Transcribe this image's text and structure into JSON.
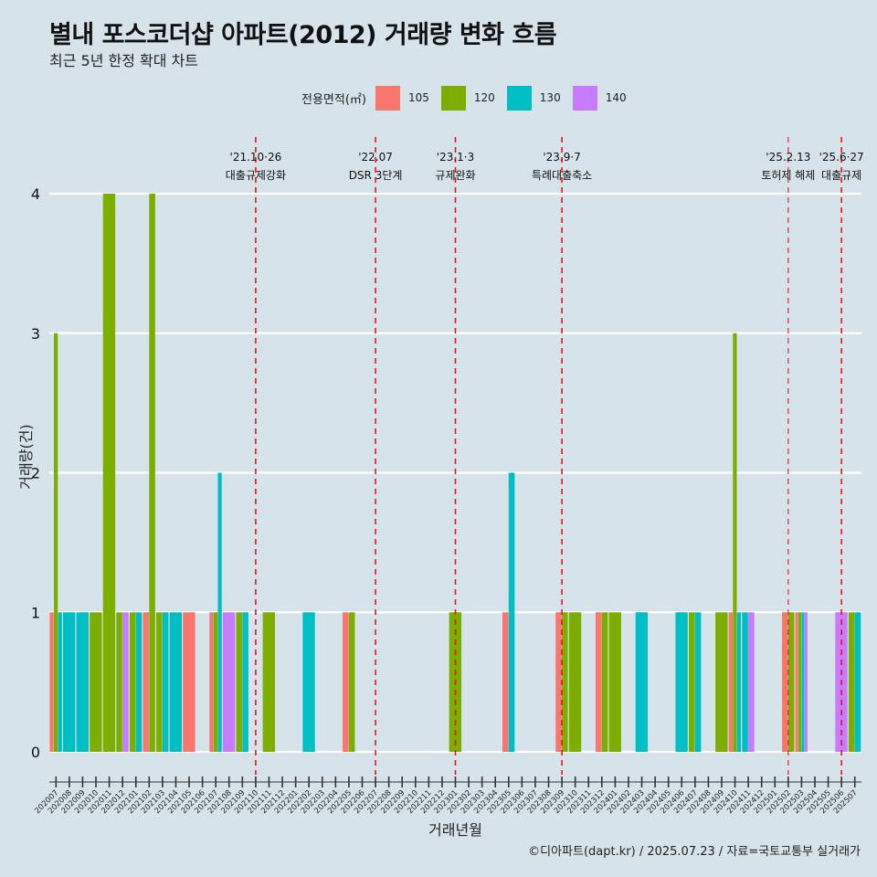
{
  "title": "별내 포스코더샵 아파트(2012) 거래량 변화 흐름",
  "subtitle": "최근 5년 한정 확대 차트",
  "legend_title": "전용면적(㎡)",
  "caption": "©디아파트(dapt.kr) / 2025.07.23 / 자료=국토교통부 실거래가",
  "chart_data": {
    "type": "bar",
    "xlabel": "거래년월",
    "ylabel": "거래량(건)",
    "ylim": [
      0,
      4
    ],
    "yticks": [
      0,
      1,
      2,
      3,
      4
    ],
    "grid": true,
    "legend_position": "top",
    "categories": [
      "202007",
      "202008",
      "202009",
      "202010",
      "202011",
      "202012",
      "202101",
      "202102",
      "202103",
      "202104",
      "202105",
      "202106",
      "202107",
      "202108",
      "202109",
      "202110",
      "202111",
      "202112",
      "202201",
      "202202",
      "202203",
      "202204",
      "202205",
      "202206",
      "202207",
      "202208",
      "202209",
      "202210",
      "202211",
      "202212",
      "202301",
      "202302",
      "202303",
      "202304",
      "202305",
      "202306",
      "202307",
      "202308",
      "202309",
      "202310",
      "202311",
      "202312",
      "202401",
      "202402",
      "202403",
      "202404",
      "202405",
      "202406",
      "202407",
      "202408",
      "202409",
      "202410",
      "202411",
      "202412",
      "202501",
      "202502",
      "202503",
      "202504",
      "202505",
      "202506",
      "202507"
    ],
    "series": [
      {
        "name": "105",
        "color": "#f8766d",
        "values": [
          1,
          0,
          0,
          0,
          0,
          0,
          0,
          1,
          0,
          0,
          1,
          0,
          1,
          0,
          0,
          0,
          0,
          0,
          0,
          0,
          0,
          0,
          1,
          0,
          0,
          0,
          0,
          0,
          0,
          0,
          0,
          0,
          0,
          0,
          1,
          0,
          0,
          0,
          1,
          0,
          0,
          1,
          0,
          0,
          0,
          0,
          0,
          0,
          0,
          0,
          0,
          1,
          0,
          0,
          0,
          1,
          1,
          0,
          0,
          0,
          0
        ]
      },
      {
        "name": "120",
        "color": "#7cae00",
        "values": [
          3,
          0,
          0,
          1,
          4,
          1,
          1,
          4,
          1,
          0,
          0,
          0,
          1,
          0,
          1,
          0,
          1,
          0,
          0,
          0,
          0,
          0,
          1,
          0,
          0,
          0,
          0,
          0,
          0,
          0,
          1,
          0,
          0,
          0,
          0,
          0,
          0,
          0,
          1,
          1,
          0,
          1,
          1,
          0,
          0,
          0,
          0,
          0,
          1,
          0,
          1,
          3,
          0,
          0,
          0,
          1,
          1,
          0,
          0,
          0,
          1
        ]
      },
      {
        "name": "130",
        "color": "#00bfc4",
        "values": [
          1,
          1,
          1,
          0,
          0,
          0,
          1,
          0,
          1,
          1,
          0,
          0,
          2,
          0,
          1,
          0,
          0,
          0,
          0,
          1,
          0,
          0,
          0,
          0,
          0,
          0,
          0,
          0,
          0,
          0,
          0,
          0,
          0,
          0,
          2,
          0,
          0,
          0,
          0,
          0,
          0,
          0,
          0,
          0,
          1,
          0,
          0,
          1,
          1,
          0,
          0,
          1,
          1,
          0,
          0,
          0,
          1,
          0,
          0,
          0,
          1
        ]
      },
      {
        "name": "140",
        "color": "#c77cff",
        "values": [
          0,
          0,
          0,
          0,
          0,
          1,
          0,
          0,
          0,
          0,
          0,
          0,
          0,
          1,
          0,
          0,
          0,
          0,
          0,
          0,
          0,
          0,
          0,
          0,
          0,
          0,
          0,
          0,
          0,
          0,
          0,
          0,
          0,
          0,
          0,
          0,
          0,
          0,
          0,
          0,
          0,
          0,
          0,
          0,
          0,
          0,
          0,
          0,
          0,
          0,
          0,
          0,
          1,
          0,
          0,
          0,
          1,
          0,
          0,
          1,
          0
        ]
      }
    ],
    "annotations": [
      {
        "x": "202110",
        "date": "'21.10·26",
        "text": "대출규제강화"
      },
      {
        "x": "202207",
        "date": "'22.07",
        "text": "DSR 3단계"
      },
      {
        "x": "202301",
        "date": "'23.1·3",
        "text": "규제완화"
      },
      {
        "x": "202309",
        "date": "'23.9·7",
        "text": "특례대출축소"
      },
      {
        "x": "202502",
        "date": "'25.2.13",
        "text": "토허제 해제"
      },
      {
        "x": "202506",
        "date": "'25.6·27",
        "text": "대출규제"
      }
    ]
  }
}
